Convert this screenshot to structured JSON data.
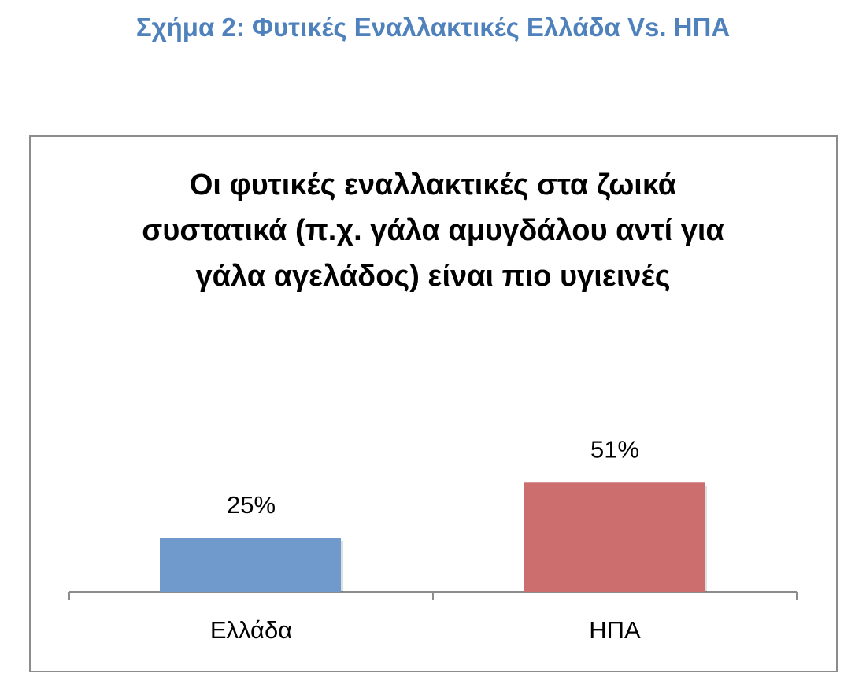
{
  "heading": "Σχήμα 2: Φυτικές Εναλλακτικές Ελλάδα Vs. ΗΠΑ",
  "chart_data": {
    "type": "bar",
    "title": "Οι φυτικές εναλλακτικές στα ζωικά συστατικά (π.χ. γάλα αμυγδάλου αντί για γάλα αγελάδος) είναι πιο υγιεινές",
    "categories": [
      "Ελλάδα",
      "ΗΠΑ"
    ],
    "values": [
      25,
      51
    ],
    "value_labels": [
      "25%",
      "51%"
    ],
    "colors": [
      "#7099cc",
      "#cc6e6e"
    ]
  }
}
